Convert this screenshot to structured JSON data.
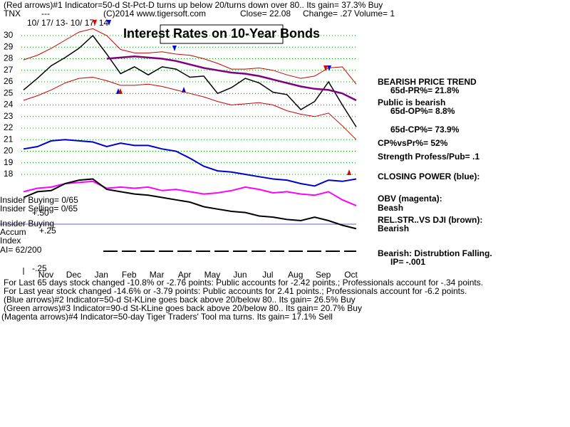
{
  "header": {
    "line1": "(Red arrows)#1 Indicator=50-d St-Pct-D turns up below 20/turns down over 80.. Its gain= 37.3% Buy",
    "ticker": "TNX",
    "dash": "---",
    "copyright": "(C)2014 www.tigersoft.com",
    "close": "Close= 22.08",
    "change": "Change= .27",
    "volume": "Volume= 1",
    "dates": "10/ 17/ 13- 10/ 17/ 14"
  },
  "sidebar": {
    "trend": "BEARISH PRICE TREND",
    "pr": "65d-PR%= 21.8%",
    "public": "Public is bearish",
    "op": "65d-OP%= 8.8%",
    "cp": "65d-CP%= 73.9%",
    "cpvspr": "CP%vsPr%=  52%",
    "strength": "Strength Profess/Pub= .1",
    "closing_power": "CLOSING POWER (blue):",
    "obv": "OBV (magenta):",
    "obv_state": "Beash",
    "relstr": "REL.STR..VS DJI (brown):",
    "relstr_state": "Bearish",
    "distribution": "Bearish: Distrubtion Falling.",
    "ip": "IP= -.001"
  },
  "left_panel": {
    "insider_buying": "Insider Buying= 0/65",
    "insider_selling": "Insider Selling= 0/65",
    "plus50": "+.50",
    "insider_label": "Insider Buying",
    "accum": "Accum",
    "plus25": "+.25",
    "index": "Index",
    "ai": "AI= 62/200",
    "minus25": "-.25"
  },
  "notes": [
    "For Last 65 days stock changed -10.8% or -2.76 points:  Public accounts for -2.42 points.;  Professionals account for -.34 points.",
    "For Last year stock changed -14.6% or -3.79 points:  Public accounts for  2.41 points.;  Professionals account for -6.2 points.",
    "(Blue arrows)#2 Indicator=50-d St-KLine goes back above 20/below 80.. Its gain= 26.5% Buy",
    "(Green arrows)#3 Indicator=90-d St-KLine goes back above 20/below 80.. Its gain= 20.7% Buy",
    "(Magenta arrows)#4 Indicator=50-day Tiger Traders' Tool ma turns. Its gain= 17.1% Sell"
  ],
  "chart_data": {
    "type": "line",
    "title": "Interest Rates on 10-Year Bonds",
    "categories": [
      null,
      "Nov",
      null,
      "Dec",
      null,
      "Jan",
      null,
      "Feb",
      null,
      "Mar",
      null,
      "Apr",
      null,
      "May",
      null,
      "Jun",
      null,
      "Jul",
      null,
      "Aug",
      null,
      "Sep",
      null,
      "Oct",
      null
    ],
    "ylim": [
      13,
      31
    ],
    "yticks": [
      18,
      19,
      20,
      21,
      22,
      23,
      24,
      25,
      26,
      27,
      28,
      29,
      30
    ],
    "grid": true,
    "grid_color": "#009900",
    "series": [
      {
        "color": "#000000",
        "values": [
          25.3,
          26.3,
          27.4,
          28.1,
          28.9,
          30.0,
          28.4,
          26.7,
          27.3,
          26.6,
          27.3,
          27.1,
          26.4,
          26.5,
          25.0,
          25.5,
          26.3,
          25.9,
          25.1,
          24.9,
          23.6,
          24.3,
          26.0,
          24.0,
          22.1
        ]
      },
      {
        "color": "#cc0000",
        "values": [
          27.9,
          28.3,
          28.9,
          29.6,
          30.3,
          30.6,
          30.0,
          28.8,
          28.5,
          28.5,
          28.6,
          28.4,
          28.3,
          28.0,
          27.6,
          27.1,
          27.1,
          27.2,
          27.0,
          26.6,
          26.3,
          26.5,
          27.2,
          27.3,
          25.8
        ]
      },
      {
        "color": "#cc0000",
        "values": [
          24.4,
          24.8,
          25.3,
          25.9,
          26.3,
          26.4,
          26.1,
          25.7,
          25.7,
          25.8,
          25.6,
          25.3,
          25.0,
          24.7,
          24.3,
          24.0,
          24.1,
          24.2,
          24.0,
          23.5,
          23.2,
          23.0,
          23.3,
          22.2,
          21.0
        ]
      },
      {
        "color": "#800080",
        "values": [
          null,
          null,
          null,
          null,
          null,
          null,
          28.0,
          28.1,
          28.2,
          28.1,
          28.0,
          27.8,
          27.5,
          27.2,
          27.0,
          26.8,
          26.7,
          26.5,
          26.2,
          25.9,
          25.6,
          25.4,
          25.3,
          25.0,
          24.4
        ]
      },
      {
        "color": "#0000cc",
        "values": [
          20.2,
          20.4,
          20.9,
          21.0,
          20.9,
          20.8,
          20.4,
          20.7,
          20.5,
          20.5,
          20.2,
          20.0,
          19.4,
          18.7,
          18.3,
          18.2,
          18.0,
          17.8,
          17.6,
          17.5,
          17.2,
          17.0,
          17.5,
          17.4,
          17.6
        ]
      },
      {
        "color": "#ff00ff",
        "values": [
          16.5,
          16.8,
          16.9,
          17.2,
          17.3,
          17.4,
          16.8,
          16.9,
          16.8,
          16.9,
          16.6,
          16.7,
          16.5,
          16.3,
          16.4,
          16.6,
          16.9,
          16.7,
          16.4,
          16.5,
          16.3,
          16.2,
          16.5,
          15.8,
          15.3
        ]
      },
      {
        "color": "#000000",
        "values": [
          16.0,
          16.5,
          16.6,
          17.2,
          17.5,
          17.6,
          16.7,
          16.5,
          16.3,
          16.2,
          16.0,
          15.8,
          15.6,
          15.2,
          15.0,
          14.8,
          14.7,
          14.4,
          14.3,
          14.1,
          14.0,
          14.3,
          14.0,
          13.6,
          13.3
        ]
      }
    ]
  }
}
